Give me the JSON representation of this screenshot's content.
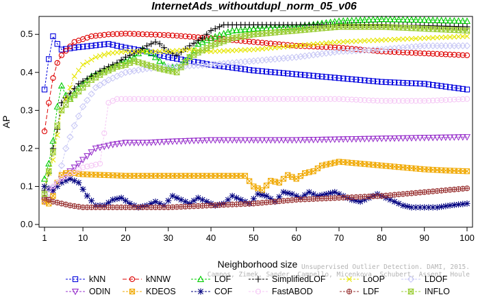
{
  "chart_data": {
    "type": "line",
    "title": "InternetAds_withoutdupl_norm_05_v06",
    "xlabel": "Neighborhood size",
    "ylabel": "AP",
    "xlim": [
      1,
      100
    ],
    "ylim": [
      0,
      0.54
    ],
    "x_ticks": [
      "1",
      "10",
      "20",
      "30",
      "40",
      "50",
      "60",
      "70",
      "80",
      "90",
      "100"
    ],
    "y_ticks": [
      "0.0",
      "0.1",
      "0.2",
      "0.3",
      "0.4",
      "0.5"
    ],
    "grid": "none",
    "legend_position": "bottom",
    "watermark_lines": [
      "Campos, Zimek, Sander, Campello, Micenkova, Schubert, Assent, Houle",
      "Unsupervised Outlier Detection. DAMI, 2015."
    ],
    "series": [
      {
        "name": "kNN",
        "color": "#0000dd",
        "marker": "square",
        "dash": "3,2",
        "points": [
          [
            1,
            0.355
          ],
          [
            2,
            0.435
          ],
          [
            3,
            0.495
          ],
          [
            4,
            0.475
          ],
          [
            5,
            0.46
          ],
          [
            8,
            0.465
          ],
          [
            12,
            0.47
          ],
          [
            16,
            0.475
          ],
          [
            20,
            0.465
          ],
          [
            25,
            0.455
          ],
          [
            30,
            0.44
          ],
          [
            35,
            0.43
          ],
          [
            40,
            0.42
          ],
          [
            50,
            0.405
          ],
          [
            60,
            0.395
          ],
          [
            70,
            0.385
          ],
          [
            80,
            0.375
          ],
          [
            90,
            0.37
          ],
          [
            100,
            0.355
          ]
        ]
      },
      {
        "name": "kNNW",
        "color": "#dd0000",
        "marker": "circle",
        "dash": "6,3",
        "points": [
          [
            1,
            0.245
          ],
          [
            2,
            0.32
          ],
          [
            3,
            0.385
          ],
          [
            4,
            0.425
          ],
          [
            5,
            0.445
          ],
          [
            8,
            0.48
          ],
          [
            12,
            0.495
          ],
          [
            16,
            0.5
          ],
          [
            20,
            0.502
          ],
          [
            25,
            0.5
          ],
          [
            30,
            0.498
          ],
          [
            40,
            0.49
          ],
          [
            50,
            0.48
          ],
          [
            60,
            0.47
          ],
          [
            70,
            0.465
          ],
          [
            80,
            0.455
          ],
          [
            90,
            0.45
          ],
          [
            100,
            0.445
          ]
        ]
      },
      {
        "name": "LOF",
        "color": "#00cc00",
        "marker": "triangle-up",
        "dash": "3,2",
        "points": [
          [
            1,
            0.12
          ],
          [
            2,
            0.16
          ],
          [
            3,
            0.22
          ],
          [
            4,
            0.31
          ],
          [
            5,
            0.365
          ],
          [
            6,
            0.34
          ],
          [
            7,
            0.33
          ],
          [
            9,
            0.36
          ],
          [
            12,
            0.39
          ],
          [
            15,
            0.405
          ],
          [
            18,
            0.42
          ],
          [
            20,
            0.43
          ],
          [
            22,
            0.44
          ],
          [
            24,
            0.46
          ],
          [
            26,
            0.45
          ],
          [
            28,
            0.43
          ],
          [
            30,
            0.41
          ],
          [
            33,
            0.42
          ],
          [
            35,
            0.44
          ],
          [
            37,
            0.475
          ],
          [
            40,
            0.49
          ],
          [
            45,
            0.51
          ],
          [
            50,
            0.515
          ],
          [
            60,
            0.52
          ],
          [
            70,
            0.535
          ],
          [
            80,
            0.54
          ],
          [
            90,
            0.538
          ],
          [
            100,
            0.535
          ]
        ]
      },
      {
        "name": "SimplifiedLOF",
        "color": "#000000",
        "marker": "plus",
        "dash": "3,2",
        "points": [
          [
            1,
            0.09
          ],
          [
            2,
            0.135
          ],
          [
            3,
            0.2
          ],
          [
            4,
            0.25
          ],
          [
            5,
            0.32
          ],
          [
            7,
            0.345
          ],
          [
            9,
            0.37
          ],
          [
            12,
            0.39
          ],
          [
            15,
            0.41
          ],
          [
            18,
            0.425
          ],
          [
            20,
            0.44
          ],
          [
            23,
            0.455
          ],
          [
            25,
            0.47
          ],
          [
            27,
            0.48
          ],
          [
            28,
            0.475
          ],
          [
            30,
            0.455
          ],
          [
            32,
            0.445
          ],
          [
            35,
            0.47
          ],
          [
            38,
            0.49
          ],
          [
            40,
            0.51
          ],
          [
            43,
            0.525
          ],
          [
            50,
            0.525
          ],
          [
            60,
            0.525
          ],
          [
            70,
            0.525
          ],
          [
            80,
            0.525
          ],
          [
            90,
            0.523
          ],
          [
            100,
            0.52
          ]
        ]
      },
      {
        "name": "LoOP",
        "color": "#e6e600",
        "marker": "x",
        "dash": "3,2",
        "points": [
          [
            1,
            0.1
          ],
          [
            3,
            0.17
          ],
          [
            5,
            0.3
          ],
          [
            8,
            0.39
          ],
          [
            10,
            0.42
          ],
          [
            13,
            0.44
          ],
          [
            16,
            0.45
          ],
          [
            20,
            0.455
          ],
          [
            25,
            0.455
          ],
          [
            30,
            0.455
          ],
          [
            35,
            0.46
          ],
          [
            40,
            0.455
          ],
          [
            50,
            0.46
          ],
          [
            60,
            0.47
          ],
          [
            70,
            0.48
          ],
          [
            80,
            0.485
          ],
          [
            90,
            0.49
          ],
          [
            100,
            0.495
          ]
        ]
      },
      {
        "name": "LDOF",
        "color": "#c8c8f5",
        "marker": "diamond",
        "dash": "3,2",
        "points": [
          [
            1,
            0.07
          ],
          [
            4,
            0.11
          ],
          [
            6,
            0.2
          ],
          [
            8,
            0.26
          ],
          [
            10,
            0.31
          ],
          [
            13,
            0.36
          ],
          [
            16,
            0.38
          ],
          [
            20,
            0.4
          ],
          [
            25,
            0.41
          ],
          [
            30,
            0.415
          ],
          [
            40,
            0.42
          ],
          [
            50,
            0.43
          ],
          [
            60,
            0.44
          ],
          [
            70,
            0.455
          ],
          [
            80,
            0.46
          ],
          [
            90,
            0.47
          ],
          [
            100,
            0.47
          ]
        ]
      },
      {
        "name": "ODIN",
        "color": "#9933cc",
        "marker": "triangle-down",
        "dash": "3,2",
        "points": [
          [
            1,
            0.06
          ],
          [
            2,
            0.065
          ],
          [
            3,
            0.09
          ],
          [
            4,
            0.105
          ],
          [
            5,
            0.12
          ],
          [
            7,
            0.14
          ],
          [
            9,
            0.16
          ],
          [
            11,
            0.18
          ],
          [
            13,
            0.2
          ],
          [
            15,
            0.205
          ],
          [
            17,
            0.21
          ],
          [
            20,
            0.215
          ],
          [
            25,
            0.215
          ],
          [
            30,
            0.218
          ],
          [
            40,
            0.222
          ],
          [
            50,
            0.222
          ],
          [
            60,
            0.222
          ],
          [
            70,
            0.224
          ],
          [
            80,
            0.226
          ],
          [
            90,
            0.228
          ],
          [
            100,
            0.23
          ]
        ]
      },
      {
        "name": "KDEOS",
        "color": "#f0a800",
        "marker": "square-cross",
        "dash": "3,2",
        "points": [
          [
            1,
            0.06
          ],
          [
            2,
            0.055
          ],
          [
            3,
            0.075
          ],
          [
            4,
            0.11
          ],
          [
            5,
            0.13
          ],
          [
            6,
            0.135
          ],
          [
            8,
            0.135
          ],
          [
            10,
            0.132
          ],
          [
            15,
            0.13
          ],
          [
            20,
            0.128
          ],
          [
            25,
            0.128
          ],
          [
            30,
            0.128
          ],
          [
            35,
            0.128
          ],
          [
            40,
            0.128
          ],
          [
            45,
            0.128
          ],
          [
            48,
            0.128
          ],
          [
            50,
            0.1
          ],
          [
            52,
            0.09
          ],
          [
            54,
            0.115
          ],
          [
            56,
            0.11
          ],
          [
            58,
            0.13
          ],
          [
            60,
            0.12
          ],
          [
            62,
            0.135
          ],
          [
            64,
            0.14
          ],
          [
            66,
            0.155
          ],
          [
            68,
            0.16
          ],
          [
            70,
            0.165
          ],
          [
            75,
            0.16
          ],
          [
            80,
            0.155
          ],
          [
            85,
            0.15
          ],
          [
            90,
            0.145
          ],
          [
            95,
            0.142
          ],
          [
            100,
            0.14
          ]
        ]
      },
      {
        "name": "COF",
        "color": "#000080",
        "marker": "asterisk",
        "dash": "3,2",
        "points": [
          [
            1,
            0.1
          ],
          [
            3,
            0.09
          ],
          [
            5,
            0.11
          ],
          [
            7,
            0.12
          ],
          [
            9,
            0.11
          ],
          [
            11,
            0.075
          ],
          [
            13,
            0.05
          ],
          [
            15,
            0.05
          ],
          [
            17,
            0.065
          ],
          [
            19,
            0.07
          ],
          [
            21,
            0.055
          ],
          [
            23,
            0.045
          ],
          [
            25,
            0.05
          ],
          [
            27,
            0.06
          ],
          [
            29,
            0.05
          ],
          [
            31,
            0.075
          ],
          [
            33,
            0.065
          ],
          [
            35,
            0.055
          ],
          [
            37,
            0.07
          ],
          [
            39,
            0.06
          ],
          [
            41,
            0.05
          ],
          [
            43,
            0.055
          ],
          [
            45,
            0.075
          ],
          [
            47,
            0.065
          ],
          [
            49,
            0.055
          ],
          [
            51,
            0.08
          ],
          [
            53,
            0.075
          ],
          [
            55,
            0.06
          ],
          [
            57,
            0.085
          ],
          [
            59,
            0.08
          ],
          [
            61,
            0.07
          ],
          [
            63,
            0.085
          ],
          [
            65,
            0.075
          ],
          [
            67,
            0.08
          ],
          [
            69,
            0.085
          ],
          [
            71,
            0.075
          ],
          [
            73,
            0.065
          ],
          [
            75,
            0.06
          ],
          [
            77,
            0.07
          ],
          [
            79,
            0.08
          ],
          [
            81,
            0.07
          ],
          [
            83,
            0.06
          ],
          [
            85,
            0.05
          ],
          [
            87,
            0.045
          ],
          [
            90,
            0.045
          ],
          [
            93,
            0.045
          ],
          [
            96,
            0.05
          ],
          [
            100,
            0.055
          ]
        ]
      },
      {
        "name": "FastABOD",
        "color": "#f5c8f5",
        "marker": "circle",
        "dash": "3,2",
        "points": [
          [
            1,
            0.08
          ],
          [
            5,
            0.12
          ],
          [
            10,
            0.15
          ],
          [
            14,
            0.16
          ],
          [
            16,
            0.32
          ],
          [
            18,
            0.33
          ],
          [
            20,
            0.33
          ],
          [
            25,
            0.33
          ],
          [
            30,
            0.33
          ],
          [
            40,
            0.33
          ],
          [
            50,
            0.33
          ],
          [
            60,
            0.33
          ],
          [
            70,
            0.33
          ],
          [
            80,
            0.325
          ],
          [
            90,
            0.325
          ],
          [
            100,
            0.33
          ]
        ]
      },
      {
        "name": "LDF",
        "color": "#993333",
        "marker": "circle-plus",
        "dash": "3,2",
        "points": [
          [
            1,
            0.07
          ],
          [
            2,
            0.065
          ],
          [
            3,
            0.06
          ],
          [
            5,
            0.055
          ],
          [
            7,
            0.05
          ],
          [
            10,
            0.045
          ],
          [
            15,
            0.045
          ],
          [
            20,
            0.045
          ],
          [
            25,
            0.045
          ],
          [
            30,
            0.045
          ],
          [
            40,
            0.05
          ],
          [
            50,
            0.055
          ],
          [
            60,
            0.065
          ],
          [
            70,
            0.07
          ],
          [
            80,
            0.075
          ],
          [
            90,
            0.085
          ],
          [
            100,
            0.095
          ]
        ]
      },
      {
        "name": "INFLO",
        "color": "#99cc33",
        "marker": "hourglass",
        "dash": "3,2",
        "points": [
          [
            1,
            0.08
          ],
          [
            2,
            0.14
          ],
          [
            3,
            0.19
          ],
          [
            4,
            0.26
          ],
          [
            5,
            0.3
          ],
          [
            7,
            0.33
          ],
          [
            9,
            0.35
          ],
          [
            12,
            0.38
          ],
          [
            15,
            0.4
          ],
          [
            18,
            0.415
          ],
          [
            20,
            0.42
          ],
          [
            22,
            0.43
          ],
          [
            25,
            0.42
          ],
          [
            28,
            0.41
          ],
          [
            30,
            0.405
          ],
          [
            32,
            0.4
          ],
          [
            35,
            0.44
          ],
          [
            40,
            0.47
          ],
          [
            45,
            0.49
          ],
          [
            50,
            0.5
          ],
          [
            60,
            0.51
          ],
          [
            70,
            0.52
          ],
          [
            80,
            0.52
          ],
          [
            90,
            0.515
          ],
          [
            100,
            0.51
          ]
        ]
      }
    ]
  }
}
